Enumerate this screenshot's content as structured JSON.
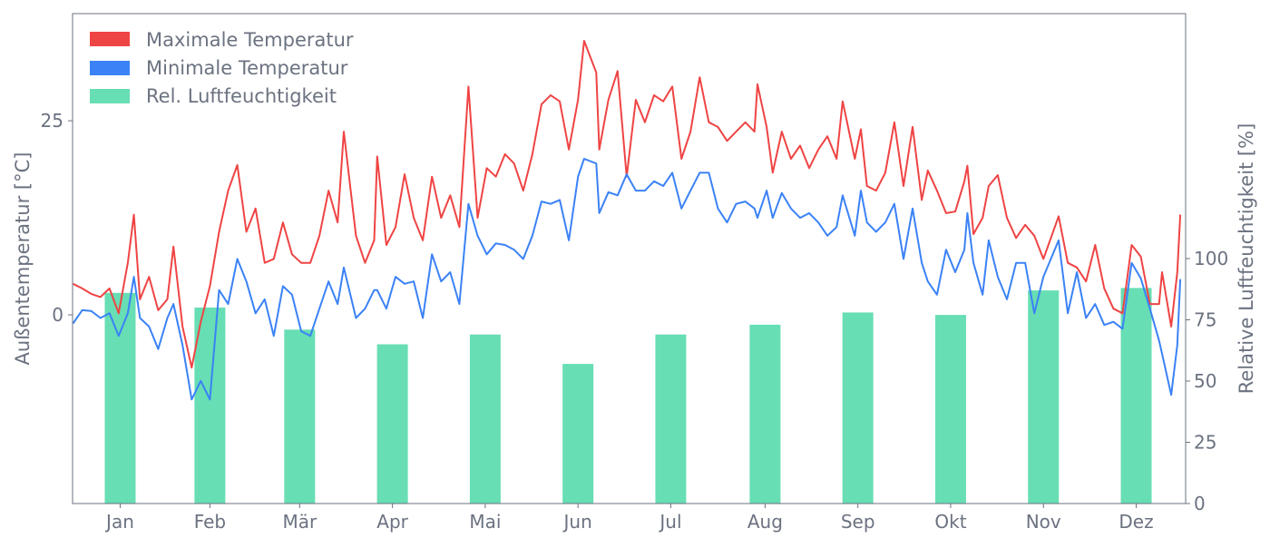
{
  "chart_data": {
    "type": "line+bar",
    "legend_position": "top-left",
    "grid": false,
    "colors": {
      "max": "#ef4444",
      "min": "#3b82f6",
      "humidity": "#34d399",
      "axis": "#6b7280"
    },
    "y_left": {
      "label": "Außentemperatur [°C]",
      "range": [
        -24.3,
        38.8
      ],
      "ticks": [
        0,
        25
      ]
    },
    "y_right": {
      "label": "Relative Luftfeuchtigkeit [%]",
      "range": [
        0,
        200
      ],
      "ticks": [
        0,
        25,
        50,
        75,
        100
      ]
    },
    "months": [
      "Jan",
      "Feb",
      "Mär",
      "Apr",
      "Mai",
      "Jun",
      "Jul",
      "Aug",
      "Sep",
      "Okt",
      "Nov",
      "Dez"
    ],
    "legend": [
      "Maximale Temperatur",
      "Minimale Temperatur",
      "Rel. Luftfeuchtigkeit"
    ],
    "humidity": {
      "name": "Rel. Luftfeuchtigkeit",
      "values": [
        86,
        80,
        71,
        65,
        69,
        57,
        69,
        73,
        78,
        77,
        87,
        88
      ]
    },
    "dates": [
      "01-01",
      "01-04",
      "01-07",
      "01-10",
      "01-13",
      "01-16",
      "01-19",
      "01-21",
      "01-23",
      "01-26",
      "01-29",
      "02-01",
      "02-03",
      "02-06",
      "02-09",
      "02-12",
      "02-15",
      "02-18",
      "02-21",
      "02-24",
      "02-27",
      "03-02",
      "03-05",
      "03-08",
      "03-11",
      "03-14",
      "03-17",
      "03-20",
      "03-23",
      "03-26",
      "03-29",
      "03-31",
      "04-04",
      "04-07",
      "04-10",
      "04-11",
      "04-14",
      "04-17",
      "04-20",
      "04-23",
      "04-26",
      "04-29",
      "05-02",
      "05-05",
      "05-08",
      "05-11",
      "05-14",
      "05-17",
      "05-20",
      "05-23",
      "05-26",
      "05-29",
      "06-01",
      "06-04",
      "06-07",
      "06-10",
      "06-13",
      "06-16",
      "06-18",
      "06-22",
      "06-23",
      "06-26",
      "06-29",
      "07-02",
      "07-05",
      "07-08",
      "07-11",
      "07-14",
      "07-17",
      "07-20",
      "07-23",
      "07-26",
      "07-29",
      "08-01",
      "08-04",
      "08-07",
      "08-10",
      "08-13",
      "08-14",
      "08-17",
      "08-19",
      "08-22",
      "08-25",
      "08-28",
      "08-31",
      "09-03",
      "09-06",
      "09-09",
      "09-11",
      "09-15",
      "09-17",
      "09-19",
      "09-22",
      "09-25",
      "09-28",
      "10-01",
      "10-04",
      "10-07",
      "10-09",
      "10-12",
      "10-15",
      "10-18",
      "10-21",
      "10-22",
      "10-24",
      "10-27",
      "10-29",
      "11-01",
      "11-04",
      "11-07",
      "11-10",
      "11-13",
      "11-16",
      "11-21",
      "11-24",
      "11-27",
      "11-30",
      "12-03",
      "12-06",
      "12-09",
      "12-12",
      "12-15",
      "12-18",
      "12-21",
      "12-24",
      "12-25",
      "12-28",
      "12-30",
      "12-31"
    ],
    "series": [
      {
        "name": "Maximale Temperatur",
        "values": [
          4.0,
          3.4,
          2.7,
          2.3,
          3.4,
          0.2,
          6.7,
          12.9,
          2.0,
          4.9,
          0.6,
          2.0,
          8.8,
          -1.5,
          -6.8,
          -0.9,
          3.7,
          10.7,
          16.0,
          19.3,
          10.7,
          13.7,
          6.7,
          7.2,
          11.9,
          7.8,
          6.7,
          6.7,
          10.2,
          16.0,
          11.9,
          23.6,
          10.2,
          6.7,
          9.6,
          20.4,
          9.0,
          11.3,
          18.1,
          12.5,
          9.6,
          17.8,
          12.5,
          15.4,
          11.3,
          29.4,
          12.5,
          18.9,
          17.8,
          20.7,
          19.5,
          16.0,
          20.7,
          27.1,
          28.3,
          27.5,
          21.3,
          27.7,
          35.3,
          31.2,
          21.3,
          27.7,
          31.4,
          17.8,
          27.7,
          24.8,
          28.3,
          27.5,
          29.4,
          20.1,
          23.6,
          30.6,
          24.8,
          24.2,
          22.4,
          23.6,
          24.8,
          23.6,
          29.7,
          24.2,
          18.3,
          23.6,
          20.1,
          21.8,
          18.9,
          21.3,
          23.0,
          20.1,
          27.5,
          20.1,
          23.9,
          16.6,
          16.0,
          18.3,
          24.8,
          16.6,
          24.2,
          14.8,
          18.6,
          16.0,
          13.1,
          13.3,
          17.2,
          19.2,
          10.4,
          12.5,
          16.6,
          18.0,
          12.5,
          9.9,
          11.6,
          10.2,
          7.2,
          12.7,
          6.7,
          6.1,
          4.3,
          9.0,
          3.4,
          0.8,
          0.2,
          9.0,
          7.5,
          1.4,
          1.4,
          5.5,
          -1.5,
          5.5,
          12.9
        ]
      },
      {
        "name": "Minimale Temperatur",
        "values": [
          -1.1,
          0.6,
          0.5,
          -0.4,
          0.2,
          -2.7,
          0.2,
          4.9,
          -0.4,
          -1.5,
          -4.4,
          -0.4,
          1.4,
          -3.9,
          -10.9,
          -8.5,
          -10.9,
          3.2,
          1.4,
          7.2,
          4.3,
          0.2,
          2.0,
          -2.7,
          3.7,
          2.6,
          -2.1,
          -2.7,
          0.8,
          4.3,
          1.4,
          6.1,
          -0.4,
          0.8,
          3.2,
          3.2,
          0.8,
          4.9,
          4.0,
          4.3,
          -0.4,
          7.8,
          4.3,
          5.5,
          1.4,
          14.3,
          10.2,
          7.8,
          9.2,
          9.0,
          8.4,
          7.2,
          10.2,
          14.6,
          14.3,
          14.8,
          9.6,
          17.8,
          20.1,
          19.5,
          13.1,
          15.8,
          15.4,
          18.1,
          16.0,
          16.0,
          17.2,
          16.6,
          18.3,
          13.7,
          16.0,
          18.3,
          18.3,
          13.7,
          11.9,
          14.3,
          14.6,
          13.7,
          12.5,
          16.0,
          12.5,
          15.7,
          13.7,
          12.5,
          13.1,
          11.9,
          10.2,
          11.3,
          15.4,
          10.2,
          16.0,
          11.9,
          10.7,
          11.9,
          14.3,
          7.2,
          13.7,
          6.7,
          4.3,
          2.6,
          8.4,
          5.5,
          8.4,
          13.1,
          6.7,
          2.6,
          9.6,
          4.9,
          2.0,
          6.7,
          6.7,
          0.2,
          4.9,
          9.6,
          0.2,
          5.5,
          -0.4,
          1.4,
          -1.3,
          -0.9,
          -1.8,
          6.7,
          4.7,
          0.8,
          -3.3,
          -5.0,
          -10.3,
          -3.9,
          4.6
        ]
      }
    ]
  }
}
